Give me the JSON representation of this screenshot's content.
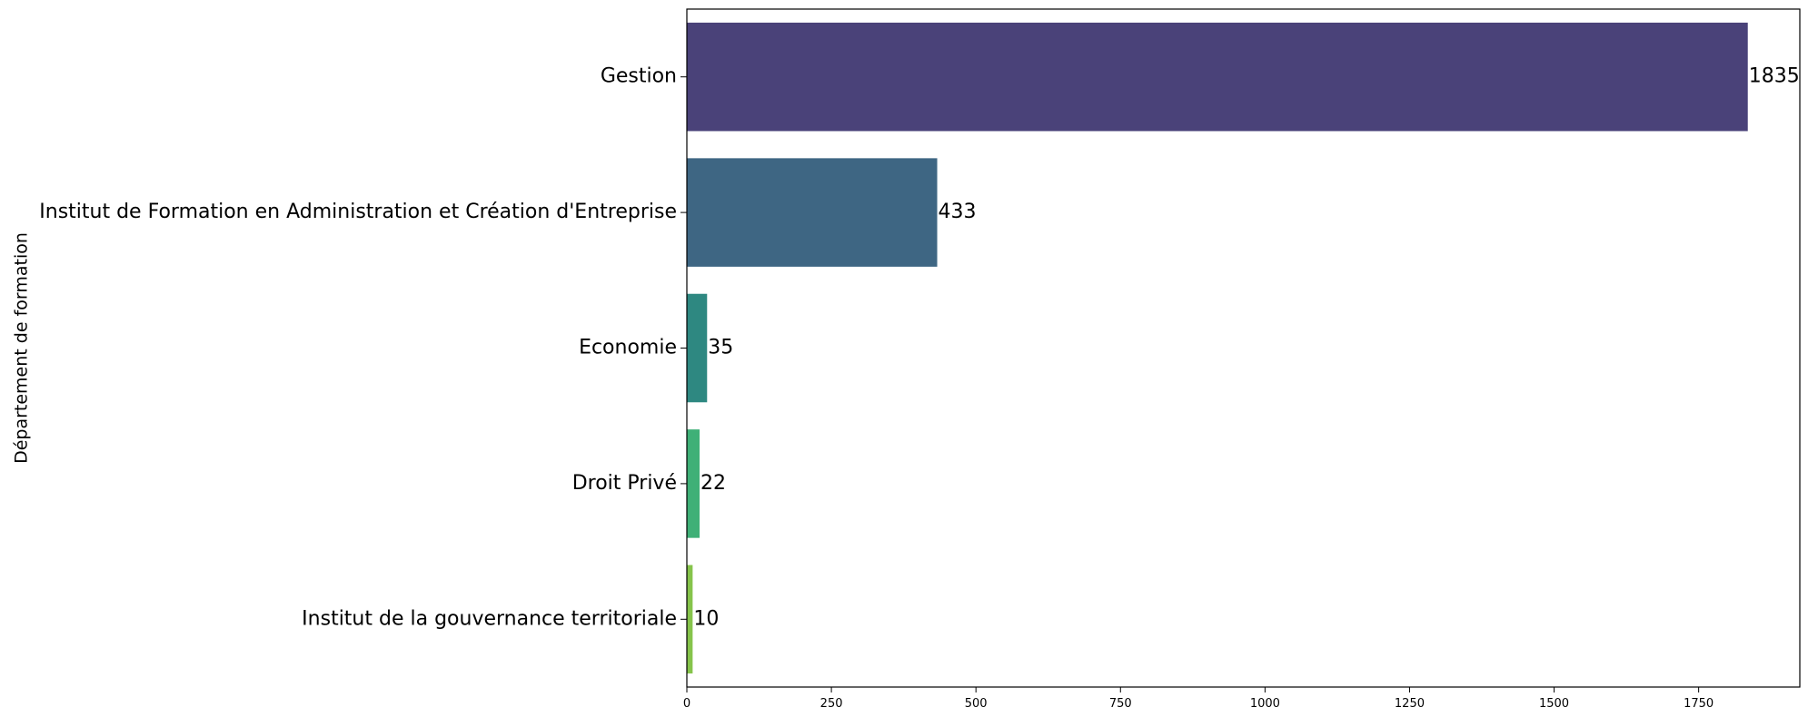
{
  "chart_data": {
    "type": "bar",
    "orientation": "horizontal",
    "categories": [
      "Gestion",
      "Institut de Formation en Administration et Création d'Entreprise",
      "Economie",
      "Droit Privé",
      "Institut de la gouvernance territoriale"
    ],
    "values": [
      1835,
      433,
      35,
      22,
      10
    ],
    "colors": [
      "#4a4279",
      "#3e6683",
      "#2e8881",
      "#3fb077",
      "#86c44b"
    ],
    "title": "",
    "xlabel": "",
    "ylabel": "Département de formation",
    "xlim": [
      0,
      1925
    ],
    "xticks": [
      0,
      250,
      500,
      750,
      1000,
      1250,
      1500,
      1750
    ],
    "xtick_labels": [
      "0",
      "250",
      "500",
      "750",
      "1000",
      "1250",
      "1500",
      "1750"
    ],
    "value_labels": [
      "1835",
      "433",
      "35",
      "22",
      "10"
    ],
    "grid": false,
    "legend": "none"
  }
}
